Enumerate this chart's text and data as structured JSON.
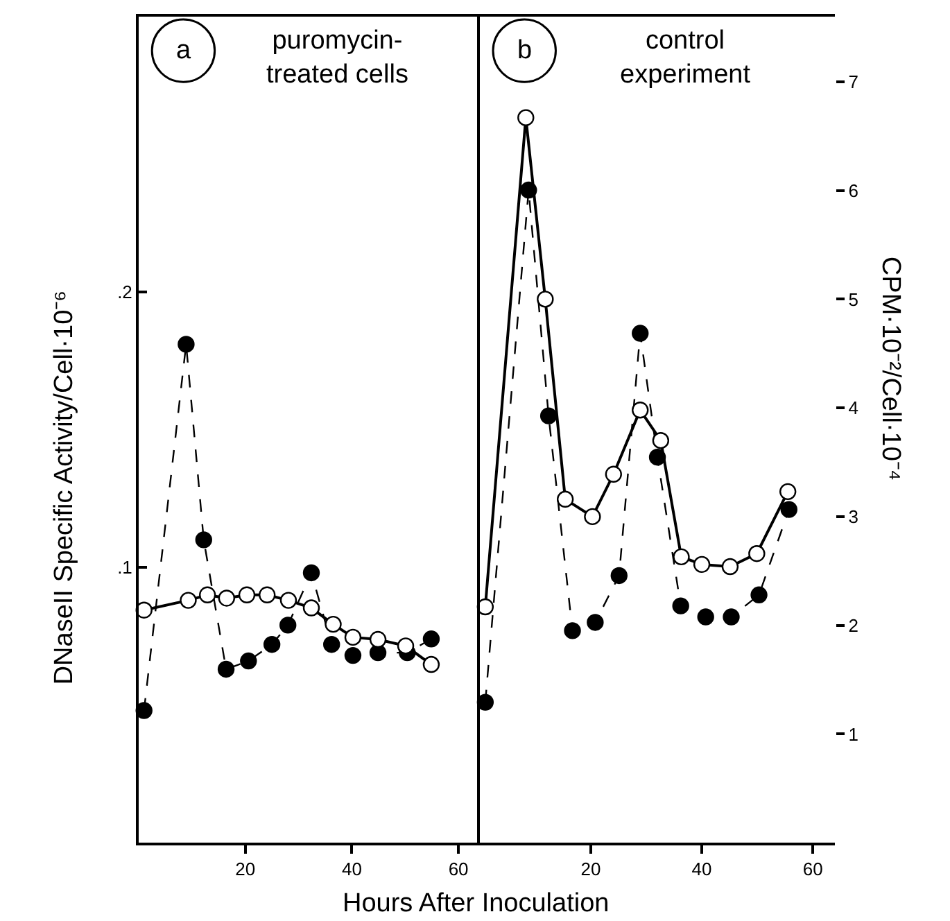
{
  "chart_data": [
    {
      "type": "line",
      "title": "puromycin-\ntreated cells",
      "annotations": [
        "a"
      ],
      "xlabel": "Hours After Inoculation",
      "ylabel": "DNaseII Specific Activity/Cell·10⁻⁶",
      "xlim": [
        0,
        64
      ],
      "xticks": [
        20,
        40,
        60
      ],
      "ylim": [
        0,
        0.3
      ],
      "yticks": [
        {
          "value": 0.1,
          "label": ".1"
        },
        {
          "value": 0.2,
          "label": ".2"
        }
      ],
      "y2lim": [
        0,
        7.6
      ],
      "series": [
        {
          "color": "#000000",
          "marker": "circle",
          "line_style": "dashed",
          "x": [
            1,
            8.9,
            12.2,
            16.4,
            20.6,
            25.0,
            28.0,
            32.4,
            36.2,
            40.2,
            44.9,
            50.4,
            54.9
          ],
          "values": [
            0.048,
            0.181,
            0.11,
            0.063,
            0.066,
            0.072,
            0.079,
            0.098,
            0.072,
            0.068,
            0.069,
            0.069,
            0.074
          ]
        },
        {
          "color": "#000000",
          "marker": "circle-open",
          "line_style": "solid",
          "axis": "y2",
          "x": [
            1,
            9.3,
            12.9,
            16.5,
            20.3,
            24.1,
            28.1,
            32.4,
            36.5,
            40.2,
            44.9,
            50.1,
            54.9
          ],
          "values": [
            2.14,
            2.23,
            2.28,
            2.25,
            2.28,
            2.28,
            2.23,
            2.16,
            2.01,
            1.89,
            1.87,
            1.81,
            1.64
          ]
        }
      ]
    },
    {
      "type": "line",
      "title": "control\nexperiment",
      "annotations": [
        "b"
      ],
      "y2label": "CPM·10⁻²/Cell·10⁻⁴",
      "xlim": [
        0,
        64
      ],
      "xticks": [
        20,
        40,
        60
      ],
      "ylim": [
        0,
        0.3
      ],
      "y2lim": [
        0,
        7.6
      ],
      "y2ticks": [
        1,
        2,
        3,
        4,
        5,
        6,
        7
      ],
      "series": [
        {
          "color": "#000000",
          "marker": "circle",
          "line_style": "dashed",
          "x": [
            1,
            8.8,
            12.4,
            16.7,
            20.8,
            25.1,
            28.9,
            32.0,
            36.2,
            40.7,
            45.3,
            50.3,
            55.7
          ],
          "values": [
            0.051,
            0.237,
            0.155,
            0.077,
            0.08,
            0.097,
            0.185,
            0.14,
            0.086,
            0.082,
            0.082,
            0.09,
            0.121
          ]
        },
        {
          "color": "#000000",
          "marker": "circle-open",
          "line_style": "solid",
          "axis": "y2",
          "x": [
            1,
            8.3,
            11.8,
            15.4,
            20.3,
            24.1,
            28.9,
            32.6,
            36.3,
            40.0,
            45.1,
            49.9,
            55.5
          ],
          "values": [
            2.17,
            6.67,
            5.0,
            3.16,
            3.0,
            3.39,
            3.98,
            3.7,
            2.63,
            2.56,
            2.54,
            2.66,
            3.23
          ]
        }
      ]
    }
  ]
}
